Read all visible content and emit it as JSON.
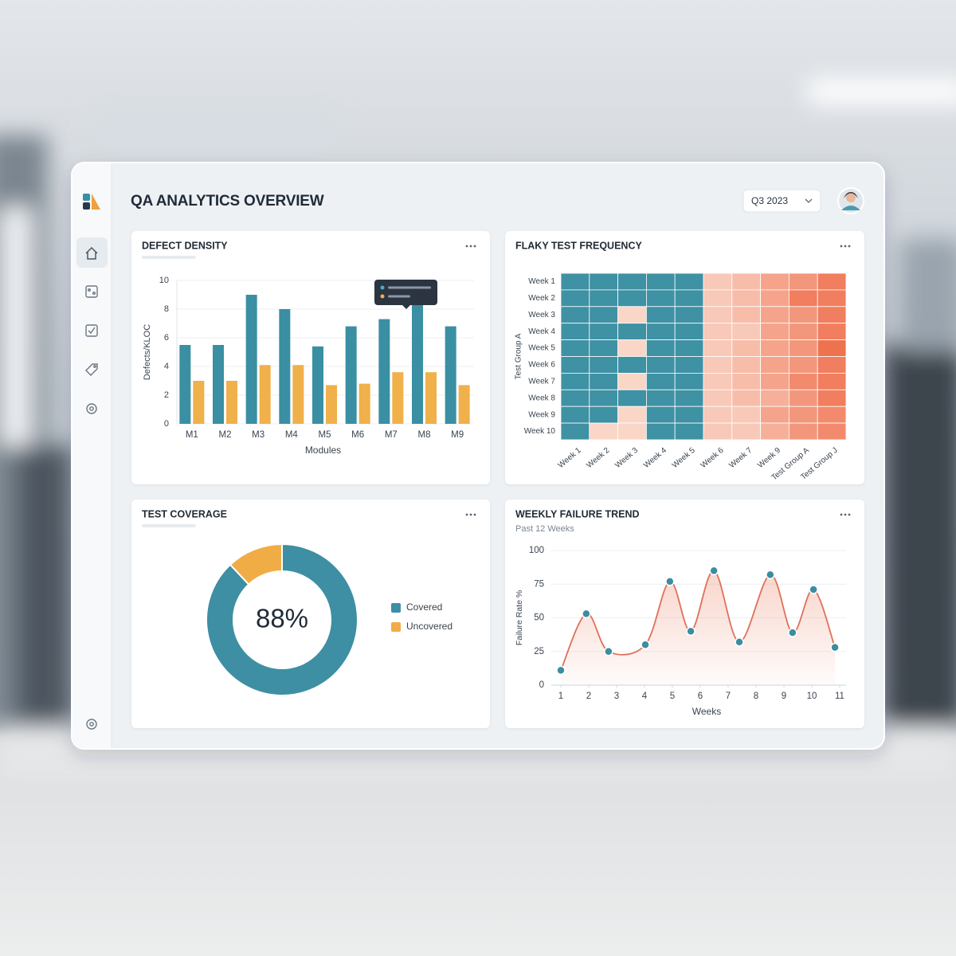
{
  "header": {
    "title": "QA ANALYTICS OVERVIEW",
    "period": "Q3 2023"
  },
  "chart_data": [
    {
      "type": "bar",
      "title": "DEFECT DENSITY",
      "y_label": "Defects/KLOC",
      "x_label": "Modules",
      "categories": [
        "M1",
        "M2",
        "M3",
        "M4",
        "M5",
        "M6",
        "M7",
        "M8",
        "M9"
      ],
      "series": [
        {
          "color": "#3a8fa3",
          "values": [
            5.5,
            5.5,
            9,
            8,
            5.4,
            6.8,
            7.3,
            8.3,
            6.8
          ]
        },
        {
          "color": "#f0b04a",
          "values": [
            3,
            3,
            4.1,
            4.1,
            2.7,
            2.8,
            3.6,
            3.6,
            2.7
          ]
        }
      ],
      "ylim": [
        0,
        10
      ],
      "yticks": [
        0,
        2,
        4,
        6,
        8,
        10
      ],
      "grid": true
    },
    {
      "type": "heatmap",
      "title": "FLAKY TEST FREQUENCY",
      "y_label": "Test Group A",
      "rows": [
        "Week 1",
        "Week 2",
        "Week 3",
        "Week 4",
        "Week 5",
        "Week 6",
        "Week 7",
        "Week 8",
        "Week 9",
        "Week 10"
      ],
      "columns": [
        "Week 1",
        "Week 2",
        "Week 3",
        "Week 4",
        "Week 5",
        "Week 6",
        "Week 7",
        "Week 9",
        "Test Group A",
        "Test Group J"
      ],
      "values": [
        [
          0,
          0,
          0,
          0,
          0,
          2,
          3,
          5,
          6,
          8
        ],
        [
          0,
          0,
          0,
          0,
          0,
          2,
          3,
          5,
          8,
          8
        ],
        [
          0,
          0,
          1,
          0,
          0,
          2,
          3,
          5,
          6,
          8
        ],
        [
          0,
          0,
          0,
          0,
          0,
          2,
          2,
          5,
          6,
          8
        ],
        [
          0,
          0,
          1,
          0,
          0,
          2,
          3,
          5,
          6,
          9
        ],
        [
          0,
          0,
          0,
          0,
          0,
          2,
          3,
          5,
          6,
          8
        ],
        [
          0,
          0,
          1,
          0,
          0,
          2,
          3,
          5,
          7,
          8
        ],
        [
          0,
          0,
          0,
          0,
          0,
          2,
          3,
          4,
          6,
          8
        ],
        [
          0,
          0,
          1,
          0,
          0,
          2,
          2,
          5,
          6,
          7
        ],
        [
          0,
          1,
          1,
          0,
          0,
          2,
          2,
          4,
          6,
          7
        ]
      ],
      "zlim": [
        0,
        10
      ],
      "colors": {
        "zero": "#3f91a4",
        "low": "#fbe2d6",
        "high": "#ee6540"
      }
    },
    {
      "type": "donut",
      "title": "TEST COVERAGE",
      "center_label": "88%",
      "categories": [
        "Covered",
        "Uncovered"
      ],
      "values": [
        88,
        12
      ],
      "colors": [
        "#3e8fa3",
        "#f0ad45"
      ]
    },
    {
      "type": "line",
      "title": "WEEKLY FAILURE TREND",
      "subtitle": "Past 12 Weeks",
      "y_label": "Failure Rate %",
      "x_label": "Weeks",
      "x": [
        1,
        1.91,
        2.71,
        4.03,
        4.91,
        5.66,
        6.49,
        7.4,
        8.51,
        9.31,
        10.06,
        10.83
      ],
      "values": [
        11,
        53,
        25,
        30,
        77,
        40,
        85,
        32,
        82,
        39,
        71,
        28
      ],
      "color": "#e0705a",
      "marker_color": "#3b8da0",
      "xlim": [
        1,
        11
      ],
      "ylim": [
        0,
        100
      ],
      "xticks": [
        1,
        2,
        3,
        4,
        5,
        6,
        7,
        8,
        9,
        10,
        11
      ],
      "yticks": [
        0,
        25,
        50,
        75,
        100
      ],
      "grid": true
    }
  ]
}
